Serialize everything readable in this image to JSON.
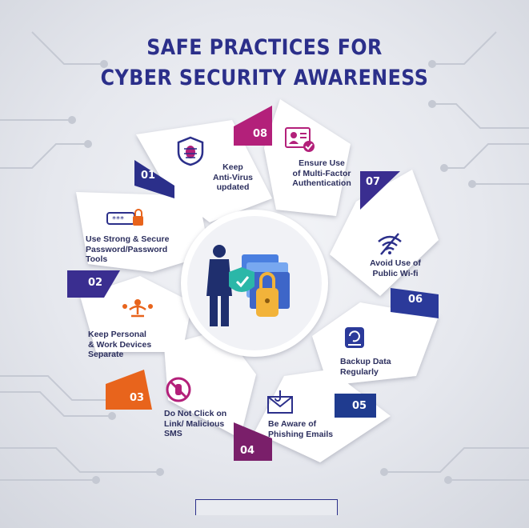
{
  "title_line1": "SAFE PRACTICES FOR",
  "title_line2": "CYBER SECURITY AWARENESS",
  "colors": {
    "navy": "#2b2f8a",
    "magenta": "#b3207a",
    "orange": "#e8641c",
    "petal": "#ffffff"
  },
  "practices": [
    {
      "number": "01",
      "label": "Keep\nAnti-Virus\nupdated",
      "icon": "shield-bug-icon"
    },
    {
      "number": "02",
      "label": "Use Strong & Secure\nPassword/Password\nTools",
      "icon": "password-lock-icon"
    },
    {
      "number": "03",
      "label": "Keep Personal\n& Work Devices\nSeparate",
      "icon": "work-life-balance-icon"
    },
    {
      "number": "04",
      "label": "Do Not Click on\nLink/ Malicious\nSMS",
      "icon": "no-click-hand-icon"
    },
    {
      "number": "05",
      "label": "Be Aware of\nPhishing Emails",
      "icon": "phishing-email-icon"
    },
    {
      "number": "06",
      "label": "Backup Data\nRegularly",
      "icon": "backup-drive-icon"
    },
    {
      "number": "07",
      "label": "Avoid Use of\nPublic Wi-fi",
      "icon": "wifi-off-icon"
    },
    {
      "number": "08",
      "label": "Ensure Use\nof Multi-Factor\nAuthentication",
      "icon": "id-card-check-icon"
    }
  ]
}
